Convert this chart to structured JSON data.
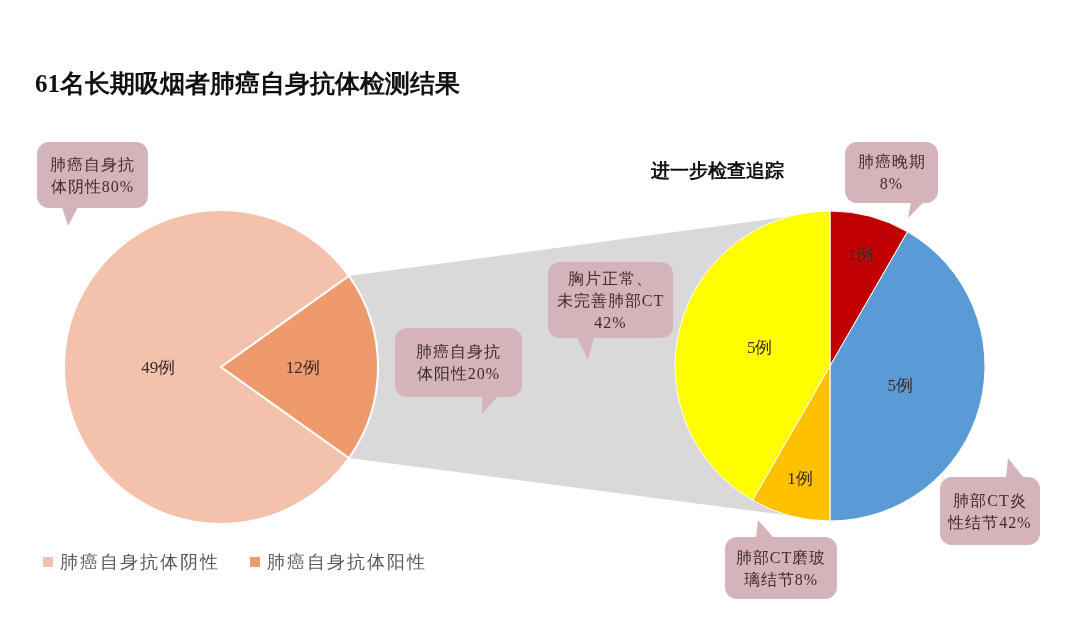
{
  "chart_data": [
    {
      "type": "pie",
      "title": "61名长期吸烟者肺癌自身抗体检测结果",
      "categories": [
        "肺癌自身抗体阴性",
        "肺癌自身抗体阳性"
      ],
      "values": [
        49,
        12
      ],
      "colors": [
        "#f4c1ad",
        "#ef9a6d"
      ],
      "value_labels": [
        "49例",
        "12例"
      ],
      "annotations": [
        "肺癌自身抗体阴性80%",
        "肺癌自身抗体阳性20%"
      ],
      "legend": "bottom"
    },
    {
      "type": "pie",
      "title": "进一步检查追踪",
      "categories": [
        "肺癌晚期",
        "肺部CT炎性结节",
        "肺部CT磨玻璃结节",
        "胸片正常、未完善肺部CT"
      ],
      "values": [
        1,
        5,
        1,
        5
      ],
      "colors": [
        "#c00000",
        "#5b9bd5",
        "#ffc000",
        "#ffff00"
      ],
      "value_labels": [
        "1例",
        "5例",
        "1例",
        "5例"
      ],
      "annotations": [
        "8%",
        "42%",
        "8%",
        "42%"
      ]
    }
  ]
}
